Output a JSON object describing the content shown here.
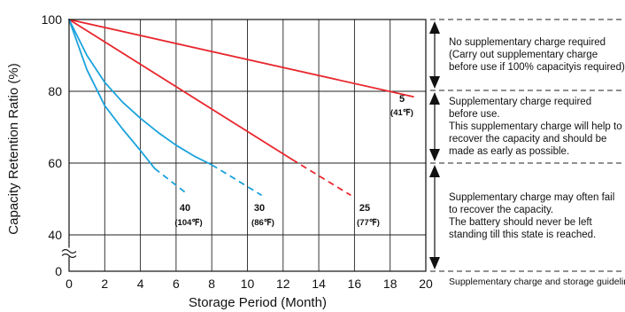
{
  "chart_data": {
    "type": "line",
    "xlabel": "Storage Period (Month)",
    "ylabel": "Capacity Retention Ratio (%)",
    "xlim": [
      0,
      20
    ],
    "ylim": [
      0,
      100
    ],
    "axis_break": true,
    "x_ticks": [
      "0",
      "2",
      "4",
      "6",
      "8",
      "10",
      "12",
      "14",
      "16",
      "18",
      "20"
    ],
    "y_ticks": [
      "0",
      "40",
      "60",
      "80",
      "100"
    ],
    "grid": true,
    "series": [
      {
        "label_c": "5",
        "label_f": "(41℉)",
        "color": "#e8262d",
        "x": [
          0,
          19.3
        ],
        "y": [
          100,
          78.5
        ],
        "dashed_from_x": null
      },
      {
        "label_c": "25",
        "label_f": "(77℉)",
        "color": "#e8262d",
        "x": [
          0,
          12.5,
          15.8
        ],
        "y": [
          100,
          61,
          51
        ],
        "dashed_from_x": 12.5
      },
      {
        "label_c": "30",
        "label_f": "(86℉)",
        "color": "#1aa2dc",
        "x": [
          0,
          1,
          2,
          3,
          4,
          5,
          6,
          7,
          8,
          9,
          10.8
        ],
        "y": [
          100,
          90,
          82.5,
          77,
          72.5,
          68.5,
          65,
          62,
          59.5,
          56.5,
          51
        ],
        "dashed_from_x": 8
      },
      {
        "label_c": "40",
        "label_f": "(104℉)",
        "color": "#1aa2dc",
        "x": [
          0,
          1,
          2,
          3,
          4,
          4.8,
          6.6
        ],
        "y": [
          100,
          86,
          76,
          69.5,
          63.5,
          58.5,
          51.5
        ],
        "dashed_from_x": 4.8
      }
    ]
  },
  "guidelines": {
    "zone_top_line1": "No supplementary charge required",
    "zone_top_line2": "(Carry out supplementary charge",
    "zone_top_line3": "before use if 100% capacityis required)",
    "zone_mid_line1": "Supplementary charge required",
    "zone_mid_line2": "before use.",
    "zone_mid_line3": "This supplementary charge will help to",
    "zone_mid_line4": "recover  the capacity and should be",
    "zone_mid_line5": "made as early as possible.",
    "zone_low_line1": "Supplementary charge may often fail",
    "zone_low_line2": "to recover the capacity.",
    "zone_low_line3": "The battery should never be left",
    "zone_low_line4": "standing till this state is reached.",
    "caption": "Supplementary charge and storage guidelines"
  }
}
